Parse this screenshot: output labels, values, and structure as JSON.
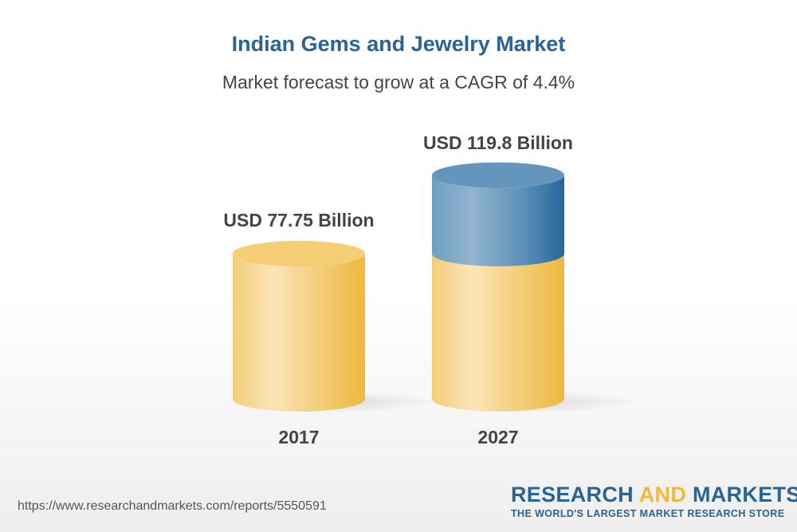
{
  "header": {
    "title": "Indian Gems and Jewelry Market",
    "subtitle": "Market forecast to grow at a CAGR of 4.4%"
  },
  "chart_data": {
    "type": "bar",
    "style": "3d-cylinder",
    "title": "Indian Gems and Jewelry Market",
    "subtitle": "Market forecast to grow at a CAGR of 4.4%",
    "categories": [
      "2017",
      "2027"
    ],
    "values": [
      77.75,
      119.8
    ],
    "data_labels": [
      "USD 77.75 Billion",
      "USD 119.8 Billion"
    ],
    "unit": "USD Billion",
    "colors": {
      "base": "#f2c45e",
      "growth": "#2a6496"
    },
    "grid": false,
    "legend": "none"
  },
  "footer": {
    "url": "https://www.researchandmarkets.com/reports/5550591",
    "logo_research": "RESEARCH",
    "logo_and": "AND",
    "logo_markets": "MARKETS",
    "logo_tagline": "THE WORLD'S LARGEST MARKET RESEARCH STORE"
  }
}
